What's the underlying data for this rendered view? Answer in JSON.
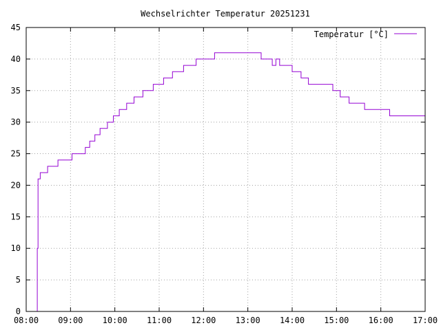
{
  "chart_data": {
    "type": "line",
    "title": "Wechselrichter Temperatur 20251231",
    "xlabel": "",
    "ylabel": "",
    "x_ticks": [
      "08:00",
      "09:00",
      "10:00",
      "11:00",
      "12:00",
      "13:00",
      "14:00",
      "15:00",
      "16:00",
      "17:00"
    ],
    "y_ticks": [
      0,
      5,
      10,
      15,
      20,
      25,
      30,
      35,
      40,
      45
    ],
    "xlim": [
      "08:00",
      "17:00"
    ],
    "ylim": [
      0,
      45
    ],
    "grid": true,
    "legend_position": "top-right",
    "series": [
      {
        "name": "Temperatur [°C]",
        "color": "#9400d3",
        "step": true,
        "points": [
          [
            "08:14",
            0
          ],
          [
            "08:15",
            10
          ],
          [
            "08:16",
            21
          ],
          [
            "08:19",
            22
          ],
          [
            "08:29",
            23
          ],
          [
            "08:43",
            24
          ],
          [
            "09:02",
            25
          ],
          [
            "09:20",
            26
          ],
          [
            "09:26",
            27
          ],
          [
            "09:33",
            28
          ],
          [
            "09:40",
            29
          ],
          [
            "09:50",
            30
          ],
          [
            "09:58",
            31
          ],
          [
            "10:06",
            32
          ],
          [
            "10:16",
            33
          ],
          [
            "10:26",
            34
          ],
          [
            "10:38",
            35
          ],
          [
            "10:52",
            36
          ],
          [
            "11:06",
            37
          ],
          [
            "11:18",
            38
          ],
          [
            "11:33",
            39
          ],
          [
            "11:50",
            40
          ],
          [
            "12:15",
            41
          ],
          [
            "13:18",
            40
          ],
          [
            "13:33",
            39
          ],
          [
            "13:38",
            40
          ],
          [
            "13:43",
            39
          ],
          [
            "14:00",
            38
          ],
          [
            "14:12",
            37
          ],
          [
            "14:22",
            36
          ],
          [
            "14:55",
            35
          ],
          [
            "15:05",
            34
          ],
          [
            "15:17",
            33
          ],
          [
            "15:38",
            32
          ],
          [
            "16:12",
            31
          ],
          [
            "17:00",
            31
          ]
        ]
      }
    ]
  }
}
